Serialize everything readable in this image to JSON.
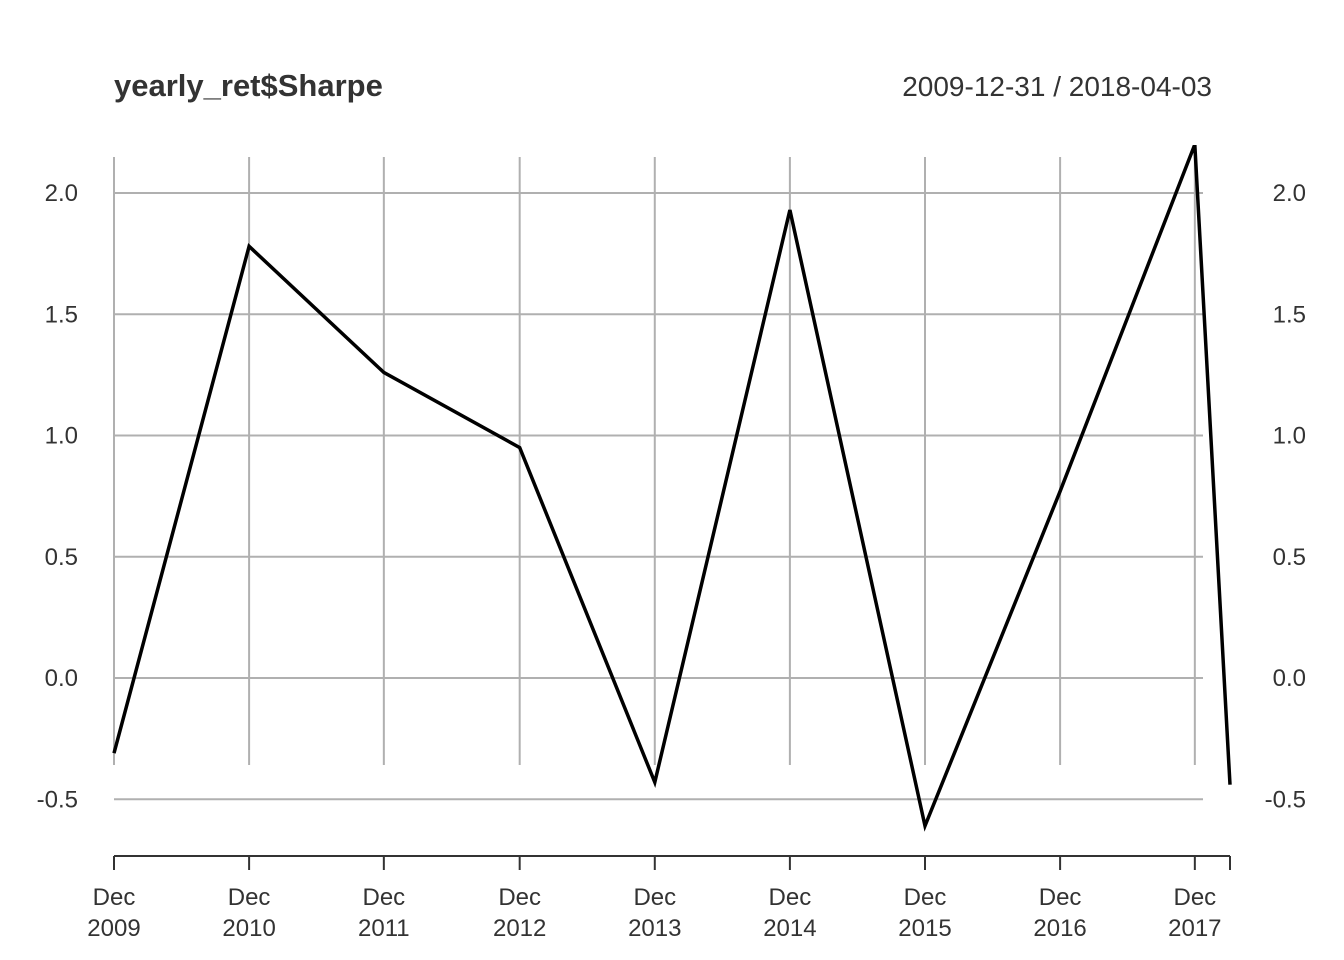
{
  "chart_data": {
    "type": "line",
    "title": "yearly_ret$Sharpe",
    "date_range": "2009-12-31 / 2018-04-03",
    "xlabel": "",
    "ylabel": "",
    "ylim": [
      -0.7,
      2.2
    ],
    "yticks": [
      "2.0",
      "1.5",
      "1.0",
      "0.5",
      "0.0",
      "-0.5"
    ],
    "ytick_values": [
      2.0,
      1.5,
      1.0,
      0.5,
      0.0,
      -0.5
    ],
    "xticks": [
      {
        "date": "2009-12-31",
        "line1": "Dec",
        "line2": "2009"
      },
      {
        "date": "2010-12-31",
        "line1": "Dec",
        "line2": "2010"
      },
      {
        "date": "2011-12-30",
        "line1": "Dec",
        "line2": "2011"
      },
      {
        "date": "2012-12-31",
        "line1": "Dec",
        "line2": "2012"
      },
      {
        "date": "2013-12-31",
        "line1": "Dec",
        "line2": "2013"
      },
      {
        "date": "2014-12-31",
        "line1": "Dec",
        "line2": "2014"
      },
      {
        "date": "2015-12-31",
        "line1": "Dec",
        "line2": "2015"
      },
      {
        "date": "2016-12-30",
        "line1": "Dec",
        "line2": "2016"
      },
      {
        "date": "2017-12-29",
        "line1": "Dec",
        "line2": "2017"
      }
    ],
    "grid": true,
    "x": [
      "2009-12-31",
      "2010-12-31",
      "2011-12-30",
      "2012-12-31",
      "2013-12-31",
      "2014-12-31",
      "2015-12-31",
      "2016-12-30",
      "2017-12-29",
      "2018-04-03"
    ],
    "series": [
      {
        "values": [
          -0.31,
          1.78,
          1.26,
          0.95,
          -0.43,
          1.93,
          -0.61,
          0.77,
          2.2,
          -0.44
        ]
      }
    ]
  }
}
